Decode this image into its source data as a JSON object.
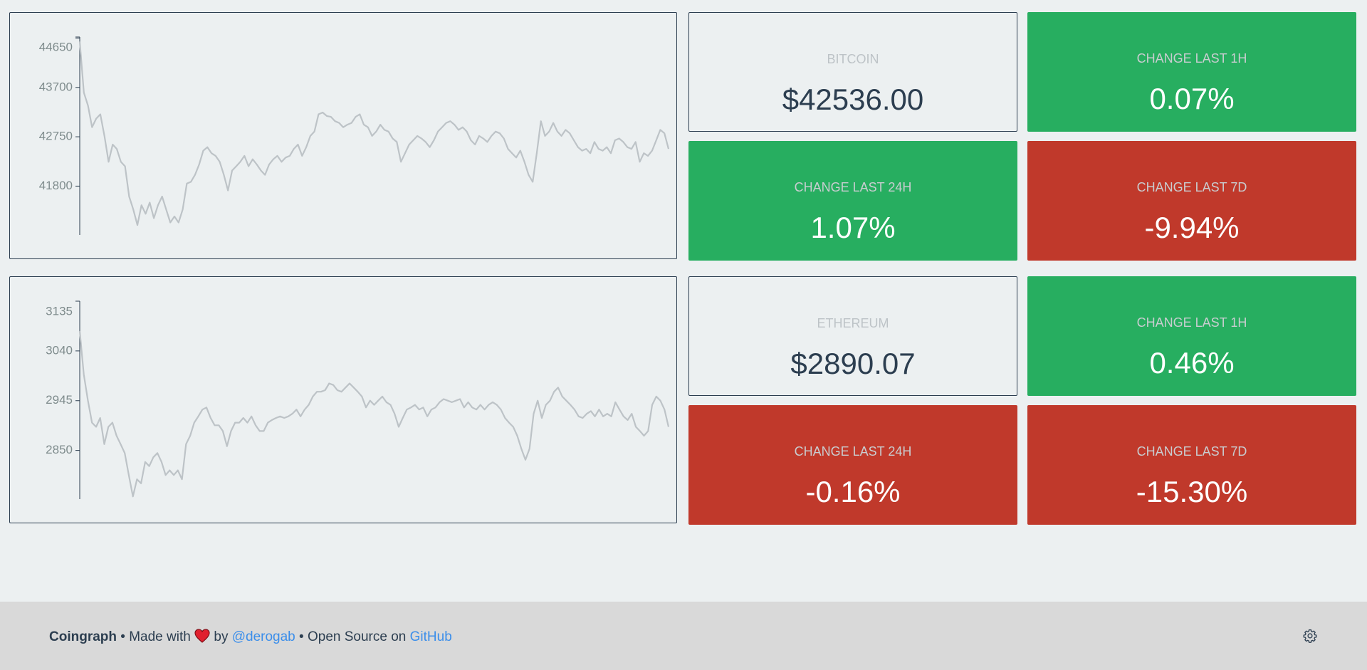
{
  "chart_data": [
    {
      "type": "line",
      "color": "#bdc3c7",
      "ylim": [
        40860,
        44670
      ],
      "yticks": [
        44650,
        43700,
        42750,
        41800
      ],
      "values": [
        44583,
        43600,
        43350,
        42933,
        43100,
        43183,
        42767,
        42267,
        42600,
        42517,
        42267,
        42183,
        41600,
        41350,
        41050,
        41433,
        41267,
        41483,
        41183,
        41433,
        41600,
        41350,
        41100,
        41217,
        41100,
        41350,
        41850,
        41883,
        42017,
        42217,
        42483,
        42550,
        42433,
        42383,
        42267,
        42017,
        41717,
        42100,
        42183,
        42267,
        42383,
        42183,
        42317,
        42217,
        42100,
        42017,
        42217,
        42317,
        42383,
        42267,
        42350,
        42383,
        42517,
        42600,
        42383,
        42550,
        42767,
        42850,
        43183,
        43217,
        43150,
        43133,
        43050,
        43017,
        42933,
        42983,
        43017,
        43133,
        43183,
        42983,
        42933,
        42767,
        42850,
        42983,
        42883,
        42850,
        42717,
        42650,
        42267,
        42433,
        42600,
        42683,
        42767,
        42717,
        42650,
        42550,
        42683,
        42850,
        42933,
        43017,
        43050,
        42983,
        42883,
        42933,
        42850,
        42683,
        42600,
        42767,
        42717,
        42650,
        42767,
        42850,
        42817,
        42717,
        42517,
        42433,
        42350,
        42483,
        42267,
        42017,
        41883,
        42433,
        43050,
        42767,
        42850,
        43017,
        42850,
        42767,
        42883,
        42817,
        42683,
        42550,
        42483,
        42517,
        42433,
        42650,
        42517,
        42483,
        42550,
        42433,
        42683,
        42717,
        42650,
        42550,
        42517,
        42650,
        42267,
        42433,
        42383,
        42483,
        42683,
        42883,
        42817,
        42517
      ]
    },
    {
      "type": "line",
      "color": "#bdc3c7",
      "ylim": [
        2757,
        3135
      ],
      "yticks": [
        3135,
        3040,
        2945,
        2850
      ],
      "values": [
        3078,
        2995,
        2945,
        2903,
        2895,
        2912,
        2862,
        2895,
        2903,
        2878,
        2862,
        2845,
        2803,
        2762,
        2795,
        2787,
        2828,
        2820,
        2837,
        2845,
        2828,
        2803,
        2812,
        2803,
        2812,
        2795,
        2862,
        2878,
        2903,
        2915,
        2928,
        2932,
        2912,
        2898,
        2898,
        2887,
        2858,
        2887,
        2903,
        2903,
        2912,
        2903,
        2915,
        2898,
        2887,
        2887,
        2903,
        2908,
        2912,
        2915,
        2912,
        2915,
        2920,
        2928,
        2915,
        2928,
        2937,
        2953,
        2962,
        2962,
        2965,
        2978,
        2975,
        2965,
        2962,
        2970,
        2978,
        2970,
        2962,
        2953,
        2932,
        2945,
        2937,
        2945,
        2953,
        2942,
        2937,
        2920,
        2895,
        2912,
        2928,
        2932,
        2937,
        2928,
        2932,
        2915,
        2928,
        2932,
        2942,
        2948,
        2945,
        2942,
        2945,
        2948,
        2932,
        2942,
        2932,
        2928,
        2937,
        2928,
        2937,
        2942,
        2937,
        2928,
        2912,
        2903,
        2895,
        2878,
        2853,
        2832,
        2853,
        2920,
        2945,
        2912,
        2937,
        2945,
        2962,
        2970,
        2953,
        2945,
        2937,
        2928,
        2915,
        2912,
        2920,
        2925,
        2915,
        2928,
        2915,
        2920,
        2915,
        2942,
        2928,
        2915,
        2908,
        2920,
        2895,
        2887,
        2878,
        2887,
        2937,
        2953,
        2945,
        2928,
        2895
      ]
    }
  ],
  "cards": [
    {
      "label": "BITCOIN",
      "value": "$42536.00"
    },
    {
      "label": "CHANGE LAST 1H",
      "value": "0.07%",
      "color": "#27ae60"
    },
    {
      "label": "CHANGE LAST 24H",
      "value": "1.07%",
      "color": "#27ae60"
    },
    {
      "label": "CHANGE LAST 7D",
      "value": "-9.94%",
      "color": "#c0392b"
    },
    {
      "label": "ETHEREUM",
      "value": "$2890.07"
    },
    {
      "label": "CHANGE LAST 1H",
      "value": "0.46%",
      "color": "#27ae60"
    },
    {
      "label": "CHANGE LAST 24H",
      "value": "-0.16%",
      "color": "#c0392b"
    },
    {
      "label": "CHANGE LAST 7D",
      "value": "-15.30%",
      "color": "#c0392b"
    }
  ],
  "footer": {
    "brand": "Coingraph",
    "made_with": "• Made with",
    "by": "by",
    "author": "@derogab",
    "open_source": "• Open Source on",
    "github": "GitHub"
  }
}
